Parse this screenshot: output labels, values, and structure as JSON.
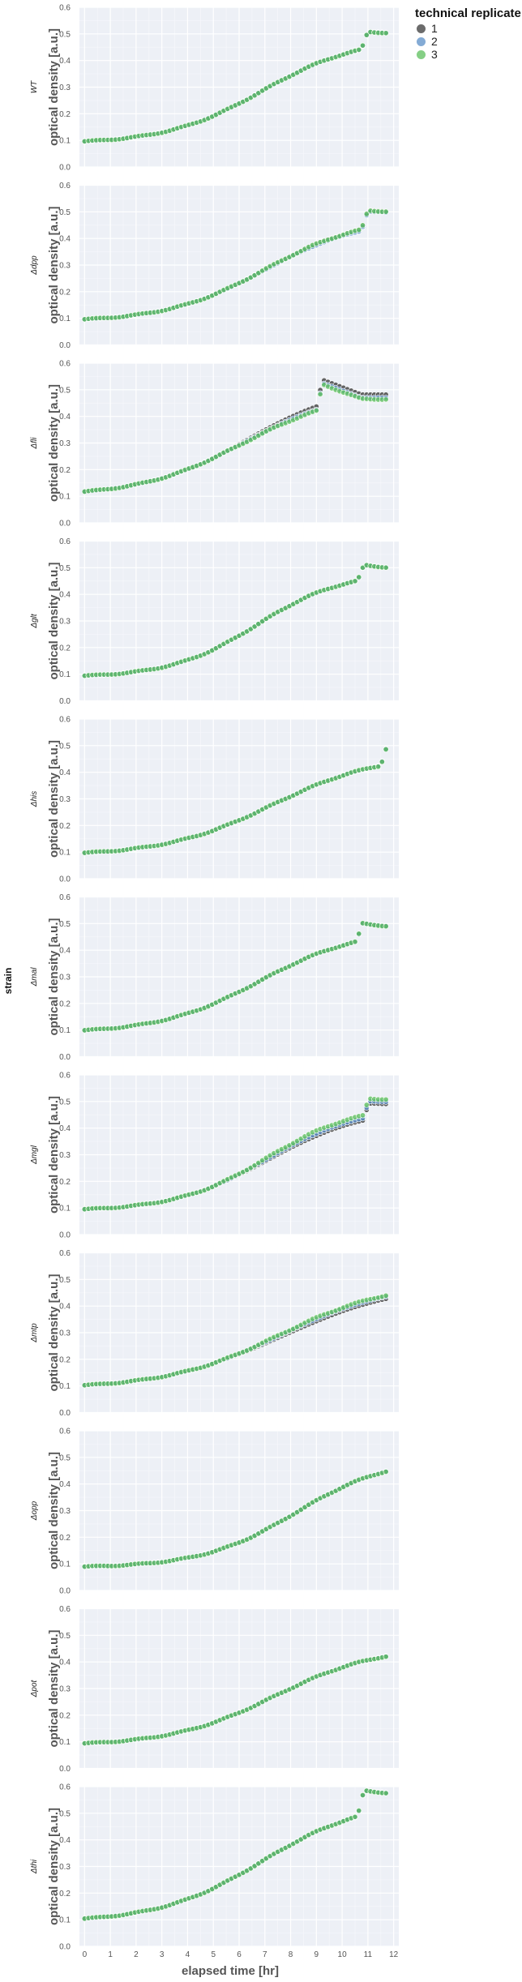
{
  "chart_data": {
    "type": "scatter",
    "facet_label": "strain",
    "xlabel": "elapsed time [hr]",
    "ylabel": "optical density [a.u.]",
    "xlim": [
      -0.2,
      12.2
    ],
    "ylim": [
      0.0,
      0.6
    ],
    "x_ticks": [
      "0",
      "1",
      "2",
      "3",
      "4",
      "5",
      "6",
      "7",
      "8",
      "9",
      "10",
      "11",
      "12"
    ],
    "y_ticks": [
      "0.0",
      "0.1",
      "0.2",
      "0.3",
      "0.4",
      "0.5",
      "0.6"
    ],
    "grid": true,
    "legend": {
      "title": "technical replicate",
      "position": "top-right",
      "entries": [
        {
          "label": "1",
          "color": "#3a3a3a"
        },
        {
          "label": "2",
          "color": "#5b8fc7"
        },
        {
          "label": "3",
          "color": "#5cbf5c"
        }
      ]
    },
    "sample_interval_hr": 0.15,
    "panels": [
      {
        "strain": "WT",
        "curve": {
          "y0": 0.087,
          "k": 0.54,
          "m": 6.9,
          "plateau": 0.485,
          "bump_at": 10.75,
          "bump_to": 0.508,
          "end": 0.5
        },
        "replicate_offsets": [
          0.0,
          0.0,
          0.0
        ]
      },
      {
        "strain": "Δdpp",
        "curve": {
          "y0": 0.087,
          "k": 0.53,
          "m": 7.0,
          "plateau": 0.48,
          "bump_at": 10.75,
          "bump_to": 0.505,
          "end": 0.498
        },
        "replicate_offsets": [
          0.0,
          -0.004,
          0.0
        ]
      },
      {
        "strain": "Δfli",
        "curve": {
          "y0": 0.1,
          "k": 0.5,
          "m": 6.2,
          "plateau": 0.505,
          "bump_at": 9.0,
          "bump_to": 0.525,
          "end": 0.47
        },
        "replicate_offsets": [
          0.012,
          0.0,
          -0.005
        ]
      },
      {
        "strain": "Δglt",
        "curve": {
          "y0": 0.087,
          "k": 0.6,
          "m": 6.7,
          "plateau": 0.485,
          "bump_at": 10.6,
          "bump_to": 0.51,
          "end": 0.495
        },
        "replicate_offsets": [
          0.0,
          0.0,
          0.0
        ]
      },
      {
        "strain": "Δhis",
        "curve": {
          "y0": 0.086,
          "k": 0.48,
          "m": 7.3,
          "plateau": 0.47,
          "bump_at": 11.5,
          "bump_to": 0.502,
          "end": 0.502
        },
        "replicate_offsets": [
          0.0,
          0.0,
          0.0
        ]
      },
      {
        "strain": "Δmal",
        "curve": {
          "y0": 0.088,
          "k": 0.52,
          "m": 6.8,
          "plateau": 0.48,
          "bump_at": 10.55,
          "bump_to": 0.5,
          "end": 0.485
        },
        "replicate_offsets": [
          0.0,
          0.0,
          0.0
        ]
      },
      {
        "strain": "Δmgl",
        "curve": {
          "y0": 0.088,
          "k": 0.56,
          "m": 7.1,
          "plateau": 0.485,
          "bump_at": 10.8,
          "bump_to": 0.505,
          "end": 0.5
        },
        "replicate_offsets": [
          -0.012,
          -0.004,
          0.006
        ]
      },
      {
        "strain": "Δmtp",
        "curve": {
          "y0": 0.09,
          "k": 0.45,
          "m": 7.6,
          "plateau": 0.49,
          "bump_at": 12.5,
          "bump_to": 0.5,
          "end": 0.5
        },
        "replicate_offsets": [
          -0.008,
          0.0,
          0.005
        ]
      },
      {
        "strain": "Δopp",
        "curve": {
          "y0": 0.085,
          "k": 0.55,
          "m": 8.2,
          "plateau": 0.5,
          "bump_at": 12.5,
          "bump_to": 0.5,
          "end": 0.5
        },
        "replicate_offsets": [
          0.0,
          0.0,
          0.0
        ]
      },
      {
        "strain": "Δpot",
        "curve": {
          "y0": 0.085,
          "k": 0.5,
          "m": 7.4,
          "plateau": 0.46,
          "bump_at": 12.5,
          "bump_to": 0.46,
          "end": 0.46
        },
        "replicate_offsets": [
          0.0,
          0.0,
          0.0
        ]
      },
      {
        "strain": "Δthi",
        "curve": {
          "y0": 0.09,
          "k": 0.5,
          "m": 6.9,
          "plateau": 0.55,
          "bump_at": 10.6,
          "bump_to": 0.585,
          "end": 0.57
        },
        "replicate_offsets": [
          0.0,
          0.0,
          0.0
        ]
      }
    ]
  }
}
